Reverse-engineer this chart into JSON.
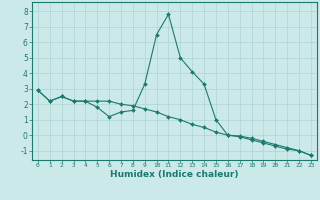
{
  "xlabel": "Humidex (Indice chaleur)",
  "xlim": [
    -0.5,
    23.5
  ],
  "ylim": [
    -1.6,
    8.6
  ],
  "yticks": [
    -1,
    0,
    1,
    2,
    3,
    4,
    5,
    6,
    7,
    8
  ],
  "xticks": [
    0,
    1,
    2,
    3,
    4,
    5,
    6,
    7,
    8,
    9,
    10,
    11,
    12,
    13,
    14,
    15,
    16,
    17,
    18,
    19,
    20,
    21,
    22,
    23
  ],
  "background_color": "#cce9e9",
  "grid_color": "#aad4d4",
  "line_color": "#1a7a6e",
  "series1": {
    "x": [
      0,
      1,
      2,
      3,
      4,
      5,
      6,
      7,
      8,
      9,
      10,
      11,
      12,
      13,
      14,
      15,
      16,
      17,
      18,
      19,
      20,
      21,
      22,
      23
    ],
    "y": [
      2.9,
      2.2,
      2.5,
      2.2,
      2.2,
      1.8,
      1.2,
      1.5,
      1.6,
      3.3,
      6.5,
      7.8,
      5.0,
      4.1,
      3.3,
      1.0,
      0.0,
      -0.05,
      -0.2,
      -0.4,
      -0.6,
      -0.8,
      -1.0,
      -1.3
    ]
  },
  "series2": {
    "x": [
      0,
      1,
      2,
      3,
      4,
      5,
      6,
      7,
      8,
      9,
      10,
      11,
      12,
      13,
      14,
      15,
      16,
      17,
      18,
      19,
      20,
      21,
      22,
      23
    ],
    "y": [
      2.9,
      2.2,
      2.5,
      2.2,
      2.2,
      2.2,
      2.2,
      2.0,
      1.9,
      1.7,
      1.5,
      1.2,
      1.0,
      0.7,
      0.5,
      0.2,
      0.0,
      -0.1,
      -0.3,
      -0.5,
      -0.7,
      -0.9,
      -1.0,
      -1.3
    ]
  }
}
